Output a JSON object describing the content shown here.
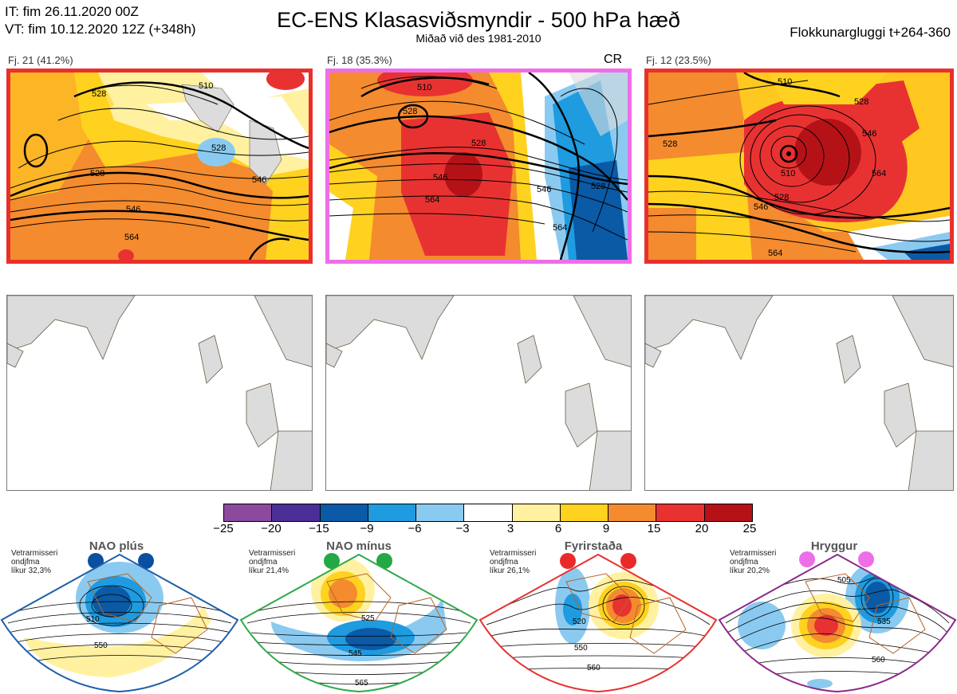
{
  "header": {
    "it_line": "IT: fim 26.11.2020 00Z",
    "vt_line": "VT: fim 10.12.2020 12Z  (+348h)",
    "title": "EC-ENS Klasasviðsmyndir - 500 hPa hæð",
    "subtitle": "Miðað við des 1981-2010",
    "window": "Flokkunargluggi t+264-360"
  },
  "clusters": [
    {
      "caption": "Fj. 21 (41.2%)",
      "tag": "",
      "frame_color": "#e8302c",
      "contour_labels": [
        "510",
        "528",
        "528",
        "528",
        "546",
        "546",
        "564"
      ]
    },
    {
      "caption": "Fj. 18 (35.3%)",
      "tag": "CR",
      "frame_color": "#ee6ee8",
      "contour_labels": [
        "528",
        "510",
        "528",
        "546",
        "564",
        "546",
        "528",
        "564"
      ]
    },
    {
      "caption": "Fj. 12 (23.5%)",
      "tag": "",
      "frame_color": "#e8302c",
      "contour_labels": [
        "510",
        "528",
        "528",
        "546",
        "546",
        "528",
        "564",
        "510",
        "564"
      ]
    }
  ],
  "colorbar": {
    "ticks": [
      "−25",
      "−20",
      "−15",
      "−9",
      "−6",
      "−3",
      "3",
      "6",
      "9",
      "15",
      "20",
      "25"
    ],
    "colors": [
      "#8b4a9e",
      "#4b2f96",
      "#0a5aa6",
      "#1f9be0",
      "#8bcaf0",
      "#ffffff",
      "#fff1a0",
      "#ffd21f",
      "#f48b2e",
      "#e83232",
      "#b51218"
    ]
  },
  "regimes": [
    {
      "title": "NAO plús",
      "note_1": "Vetrarmisseri",
      "note_2": "ondjfma",
      "note_3": "líkur 32,3%",
      "frame_color": "#1f5fa8",
      "dot_color": "#0a4fa0",
      "labels": [
        "510",
        "550"
      ]
    },
    {
      "title": "NAO mínus",
      "note_1": "Vetrarmisseri",
      "note_2": "ondjfma",
      "note_3": "líkur 21,4%",
      "frame_color": "#2eaa4a",
      "dot_color": "#22a844",
      "labels": [
        "525",
        "545",
        "565"
      ]
    },
    {
      "title": "Fyrirstaða",
      "note_1": "Vetrarmisseri",
      "note_2": "ondjfma",
      "note_3": "líkur 26,1%",
      "frame_color": "#e8302c",
      "dot_color": "#ea2a2a",
      "labels": [
        "520",
        "550",
        "560"
      ]
    },
    {
      "title": "Hryggur",
      "note_1": "Vetrarmisseri",
      "note_2": "ondjfma",
      "note_3": "líkur 20,2%",
      "frame_color": "#8a2a8a",
      "dot_color": "#ee6ee8",
      "labels": [
        "505",
        "535",
        "560"
      ]
    }
  ]
}
